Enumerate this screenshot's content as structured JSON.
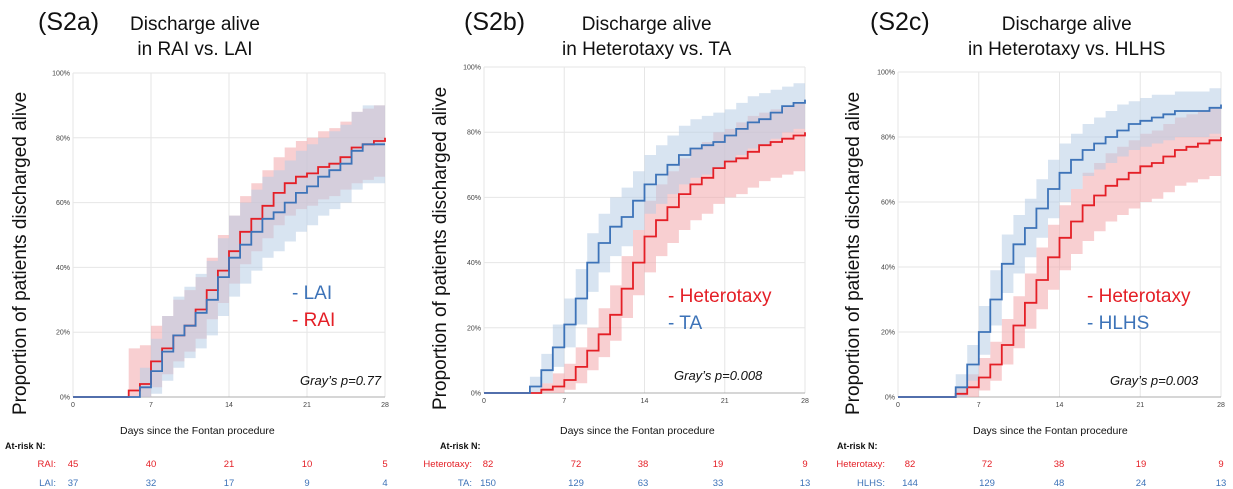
{
  "colors": {
    "red": "#e41f26",
    "blue": "#3d73b8",
    "red_band": "#f3a8ab",
    "blue_band": "#b8cde6"
  },
  "panels": [
    {
      "id": "S2a",
      "label": "(S2a)",
      "title_lines": [
        "Discharge alive",
        "in RAI vs. LAI"
      ],
      "ylabel": "Proportion of patients discharged alive",
      "xlabel": "Days since the Fontan procedure",
      "pvalue": "Gray’s p=0.77",
      "legend": [
        {
          "text": "- LAI",
          "color": "blue"
        },
        {
          "text": "- RAI",
          "color": "red"
        }
      ],
      "at_risk": {
        "header": "At-risk N:",
        "rows": [
          {
            "label": "RAI:",
            "color": "red",
            "values": [
              "45",
              "40",
              "21",
              "10",
              "5"
            ]
          },
          {
            "label": "LAI:",
            "color": "blue",
            "values": [
              "37",
              "32",
              "17",
              "9",
              "4"
            ]
          }
        ]
      }
    },
    {
      "id": "S2b",
      "label": "(S2b)",
      "title_lines": [
        "Discharge alive",
        "in Heterotaxy vs. TA"
      ],
      "ylabel": "Proportion of patients discharged alive",
      "xlabel": "Days since the Fontan procedure",
      "pvalue": "Gray’s p=0.008",
      "legend": [
        {
          "text": "- Heterotaxy",
          "color": "red"
        },
        {
          "text": "- TA",
          "color": "blue"
        }
      ],
      "at_risk": {
        "header": "At-risk N:",
        "rows": [
          {
            "label": "Heterotaxy:",
            "color": "red",
            "values": [
              "82",
              "72",
              "38",
              "19",
              "9"
            ]
          },
          {
            "label": "TA:",
            "color": "blue",
            "values": [
              "150",
              "129",
              "63",
              "33",
              "13"
            ]
          }
        ]
      }
    },
    {
      "id": "S2c",
      "label": "(S2c)",
      "title_lines": [
        "Discharge alive",
        "in Heterotaxy vs. HLHS"
      ],
      "ylabel": "Proportion of patients discharged alive",
      "xlabel": "Days since the Fontan procedure",
      "pvalue": "Gray’s p=0.003",
      "legend": [
        {
          "text": "- Heterotaxy",
          "color": "red"
        },
        {
          "text": "- HLHS",
          "color": "blue"
        }
      ],
      "at_risk": {
        "header": "At-risk N:",
        "rows": [
          {
            "label": "Heterotaxy:",
            "color": "red",
            "values": [
              "82",
              "72",
              "38",
              "19",
              "9"
            ]
          },
          {
            "label": "HLHS:",
            "color": "blue",
            "values": [
              "144",
              "129",
              "48",
              "24",
              "13"
            ]
          }
        ]
      }
    }
  ],
  "chart_data": [
    {
      "type": "line",
      "title": "Discharge alive in RAI vs. LAI",
      "xlabel": "Days since the Fontan procedure",
      "ylabel": "Proportion of patients discharged alive",
      "xlim": [
        0,
        28
      ],
      "ylim": [
        0,
        100
      ],
      "xticks": [
        0,
        7,
        14,
        21,
        28
      ],
      "yticks": [
        "0%",
        "20%",
        "40%",
        "60%",
        "80%",
        "100%"
      ],
      "step": true,
      "confidence_bands": true,
      "grid": true,
      "series": [
        {
          "name": "RAI",
          "color": "red",
          "x": [
            0,
            5,
            6,
            7,
            8,
            9,
            10,
            11,
            12,
            13,
            14,
            15,
            16,
            17,
            18,
            19,
            20,
            21,
            22,
            23,
            24,
            25,
            26,
            27,
            28
          ],
          "y": [
            0,
            2,
            4,
            11,
            15,
            19,
            22,
            27,
            33,
            39,
            45,
            51,
            55,
            59,
            63,
            66,
            68,
            69,
            71,
            72,
            74,
            77,
            78,
            79,
            80
          ],
          "lower": [
            0,
            0,
            0,
            3,
            7,
            11,
            14,
            18,
            24,
            29,
            35,
            41,
            45,
            49,
            53,
            56,
            58,
            59,
            61,
            62,
            64,
            66,
            67,
            68,
            69
          ],
          "upper": [
            0,
            15,
            16,
            22,
            25,
            30,
            33,
            37,
            43,
            50,
            56,
            62,
            66,
            70,
            74,
            77,
            79,
            80,
            82,
            83,
            85,
            88,
            89,
            90,
            91
          ]
        },
        {
          "name": "LAI",
          "color": "blue",
          "x": [
            0,
            5,
            6,
            7,
            8,
            9,
            10,
            11,
            12,
            13,
            14,
            15,
            16,
            17,
            18,
            19,
            20,
            21,
            22,
            23,
            24,
            25,
            26,
            27,
            28
          ],
          "y": [
            0,
            0,
            3,
            8,
            14,
            19,
            22,
            26,
            30,
            37,
            43,
            47,
            51,
            55,
            57,
            60,
            63,
            65,
            68,
            70,
            72,
            76,
            78,
            78,
            78
          ],
          "lower": [
            0,
            0,
            0,
            1,
            5,
            9,
            12,
            15,
            19,
            25,
            31,
            35,
            39,
            43,
            45,
            48,
            51,
            53,
            56,
            58,
            60,
            64,
            66,
            66,
            66
          ],
          "upper": [
            0,
            0,
            9,
            18,
            25,
            31,
            34,
            38,
            42,
            49,
            56,
            60,
            64,
            68,
            70,
            73,
            76,
            78,
            80,
            82,
            84,
            88,
            90,
            90,
            90
          ]
        }
      ]
    },
    {
      "type": "line",
      "title": "Discharge alive in Heterotaxy vs. TA",
      "xlabel": "Days since the Fontan procedure",
      "ylabel": "Proportion of patients discharged alive",
      "xlim": [
        0,
        28
      ],
      "ylim": [
        0,
        100
      ],
      "xticks": [
        0,
        7,
        14,
        21,
        28
      ],
      "yticks": [
        "0%",
        "20%",
        "40%",
        "60%",
        "80%",
        "100%"
      ],
      "step": true,
      "confidence_bands": true,
      "grid": true,
      "series": [
        {
          "name": "Heterotaxy",
          "color": "red",
          "x": [
            0,
            5,
            6,
            7,
            8,
            9,
            10,
            11,
            12,
            13,
            14,
            15,
            16,
            17,
            18,
            19,
            20,
            21,
            22,
            23,
            24,
            25,
            26,
            27,
            28
          ],
          "y": [
            0,
            1,
            2,
            4,
            8,
            13,
            18,
            24,
            32,
            40,
            48,
            53,
            57,
            61,
            64,
            66,
            69,
            71,
            72,
            74,
            76,
            77,
            78,
            79,
            80
          ],
          "lower": [
            0,
            0,
            0,
            1,
            3,
            7,
            11,
            16,
            23,
            30,
            37,
            42,
            46,
            50,
            53,
            55,
            58,
            60,
            61,
            63,
            65,
            66,
            67,
            68,
            69
          ],
          "upper": [
            0,
            3,
            6,
            9,
            14,
            20,
            26,
            33,
            42,
            50,
            59,
            64,
            68,
            72,
            75,
            77,
            80,
            81,
            83,
            85,
            86,
            87,
            88,
            89,
            90
          ]
        },
        {
          "name": "TA",
          "color": "blue",
          "x": [
            0,
            4,
            5,
            6,
            7,
            8,
            9,
            10,
            11,
            12,
            13,
            14,
            15,
            16,
            17,
            18,
            19,
            20,
            21,
            22,
            23,
            24,
            25,
            26,
            27,
            28
          ],
          "y": [
            0,
            2,
            7,
            14,
            21,
            29,
            40,
            46,
            51,
            54,
            59,
            64,
            67,
            70,
            73,
            75,
            76,
            77,
            79,
            81,
            83,
            84,
            86,
            88,
            89,
            90
          ],
          "lower": [
            0,
            0,
            3,
            8,
            14,
            21,
            31,
            37,
            42,
            45,
            50,
            55,
            58,
            61,
            64,
            66,
            67,
            69,
            71,
            73,
            75,
            76,
            78,
            80,
            81,
            82
          ],
          "upper": [
            0,
            5,
            12,
            21,
            29,
            38,
            49,
            55,
            60,
            63,
            68,
            73,
            76,
            79,
            82,
            84,
            85,
            86,
            87,
            89,
            91,
            92,
            93,
            94,
            95,
            95
          ]
        }
      ]
    },
    {
      "type": "line",
      "title": "Discharge alive in Heterotaxy vs. HLHS",
      "xlabel": "Days since the Fontan procedure",
      "ylabel": "Proportion of patients discharged alive",
      "xlim": [
        0,
        28
      ],
      "ylim": [
        0,
        100
      ],
      "xticks": [
        0,
        7,
        14,
        21,
        28
      ],
      "yticks": [
        "0%",
        "20%",
        "40%",
        "60%",
        "80%",
        "100%"
      ],
      "step": true,
      "confidence_bands": true,
      "grid": true,
      "series": [
        {
          "name": "Heterotaxy",
          "color": "red",
          "x": [
            0,
            5,
            6,
            7,
            8,
            9,
            10,
            11,
            12,
            13,
            14,
            15,
            16,
            17,
            18,
            19,
            20,
            21,
            22,
            23,
            24,
            25,
            26,
            27,
            28
          ],
          "y": [
            0,
            1,
            3,
            6,
            10,
            16,
            22,
            29,
            36,
            43,
            49,
            54,
            59,
            62,
            65,
            67,
            69,
            71,
            72,
            74,
            76,
            77,
            78,
            79,
            80
          ],
          "lower": [
            0,
            0,
            0,
            2,
            5,
            10,
            15,
            21,
            27,
            33,
            39,
            44,
            48,
            51,
            54,
            56,
            58,
            60,
            61,
            63,
            65,
            66,
            67,
            68,
            69
          ],
          "upper": [
            0,
            3,
            7,
            12,
            17,
            24,
            31,
            38,
            46,
            53,
            59,
            64,
            69,
            72,
            75,
            77,
            79,
            81,
            82,
            84,
            86,
            87,
            88,
            89,
            90
          ]
        },
        {
          "name": "HLHS",
          "color": "blue",
          "x": [
            0,
            5,
            6,
            7,
            8,
            9,
            10,
            11,
            12,
            13,
            14,
            15,
            16,
            17,
            18,
            19,
            20,
            21,
            22,
            23,
            24,
            25,
            26,
            27,
            28
          ],
          "y": [
            0,
            3,
            10,
            20,
            30,
            41,
            47,
            52,
            58,
            64,
            69,
            73,
            76,
            78,
            80,
            82,
            84,
            85,
            86,
            87,
            88,
            88,
            88,
            89,
            90
          ],
          "lower": [
            0,
            0,
            5,
            13,
            22,
            32,
            38,
            43,
            49,
            55,
            60,
            64,
            68,
            70,
            72,
            74,
            76,
            77,
            78,
            79,
            80,
            80,
            80,
            81,
            82
          ],
          "upper": [
            0,
            7,
            16,
            28,
            39,
            50,
            56,
            61,
            67,
            73,
            78,
            81,
            84,
            86,
            88,
            90,
            91,
            92,
            93,
            93,
            94,
            94,
            94,
            95,
            95
          ]
        }
      ]
    }
  ]
}
